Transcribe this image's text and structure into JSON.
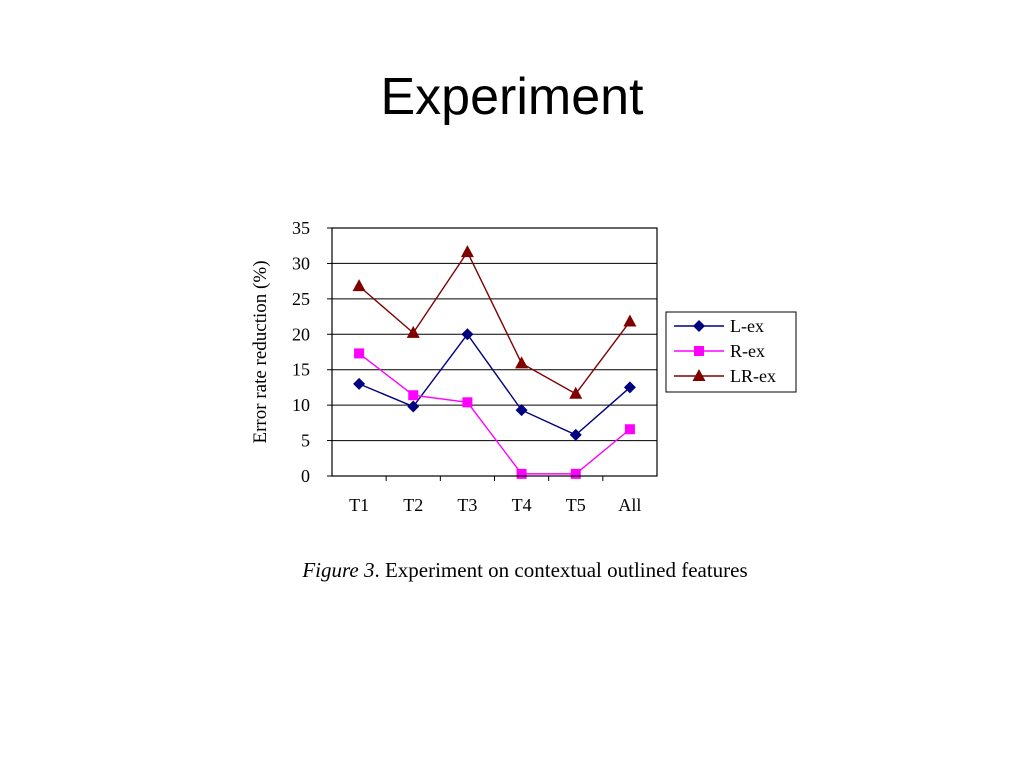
{
  "slide": {
    "title": "Experiment"
  },
  "caption": {
    "label": "Figure 3",
    "text": ". Experiment on contextual outlined features"
  },
  "chart_data": {
    "type": "line",
    "categories": [
      "T1",
      "T2",
      "T3",
      "T4",
      "T5",
      "All"
    ],
    "ylabel": "Error rate reduction (%)",
    "xlabel": "",
    "ylim": [
      0,
      35
    ],
    "yticks": [
      0,
      5,
      10,
      15,
      20,
      25,
      30,
      35
    ],
    "grid": true,
    "legend_position": "right",
    "series": [
      {
        "name": "L-ex",
        "color": "#000080",
        "marker": "diamond",
        "values": [
          13,
          9.8,
          20,
          9.3,
          5.8,
          12.5
        ]
      },
      {
        "name": "R-ex",
        "color": "#ff00ff",
        "marker": "square",
        "values": [
          17.3,
          11.4,
          10.4,
          0.3,
          0.3,
          6.6
        ]
      },
      {
        "name": "LR-ex",
        "color": "#800000",
        "marker": "triangle",
        "values": [
          26.8,
          20.2,
          31.6,
          15.9,
          11.6,
          21.8
        ]
      }
    ]
  }
}
